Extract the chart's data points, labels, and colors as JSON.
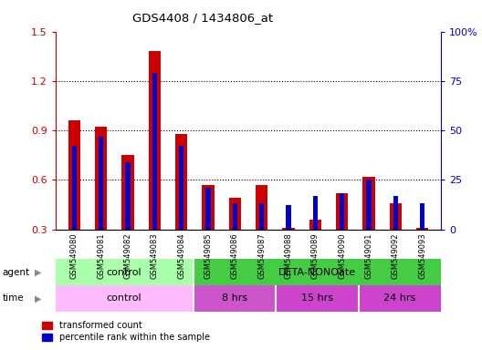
{
  "title": "GDS4408 / 1434806_at",
  "samples": [
    "GSM549080",
    "GSM549081",
    "GSM549082",
    "GSM549083",
    "GSM549084",
    "GSM549085",
    "GSM549086",
    "GSM549087",
    "GSM549088",
    "GSM549089",
    "GSM549090",
    "GSM549091",
    "GSM549092",
    "GSM549093"
  ],
  "red_values": [
    0.96,
    0.92,
    0.75,
    1.38,
    0.88,
    0.57,
    0.49,
    0.57,
    0.31,
    0.36,
    0.52,
    0.62,
    0.46,
    0.31
  ],
  "blue_percentile": [
    42,
    47,
    34,
    79,
    42,
    21,
    13,
    13,
    12,
    17,
    18,
    25,
    17,
    13
  ],
  "ylim_left": [
    0.3,
    1.5
  ],
  "ylim_right": [
    0,
    100
  ],
  "yticks_left": [
    0.3,
    0.6,
    0.9,
    1.2,
    1.5
  ],
  "yticks_right": [
    0,
    25,
    50,
    75,
    100
  ],
  "ytick_labels_right": [
    "0",
    "25",
    "50",
    "75",
    "100%"
  ],
  "red_color": "#cc0000",
  "blue_color": "#0000cc",
  "red_bar_width": 0.45,
  "blue_bar_width": 0.18,
  "agent_control_color": "#aaffaa",
  "agent_deta_color": "#44cc44",
  "time_control_color": "#ffbbff",
  "time_8hrs_color": "#cc55cc",
  "time_15hrs_color": "#cc44cc",
  "time_24hrs_color": "#cc44cc",
  "legend_red": "transformed count",
  "legend_blue": "percentile rank within the sample",
  "tick_color_left": "#cc0000",
  "tick_color_right": "#0000cc"
}
